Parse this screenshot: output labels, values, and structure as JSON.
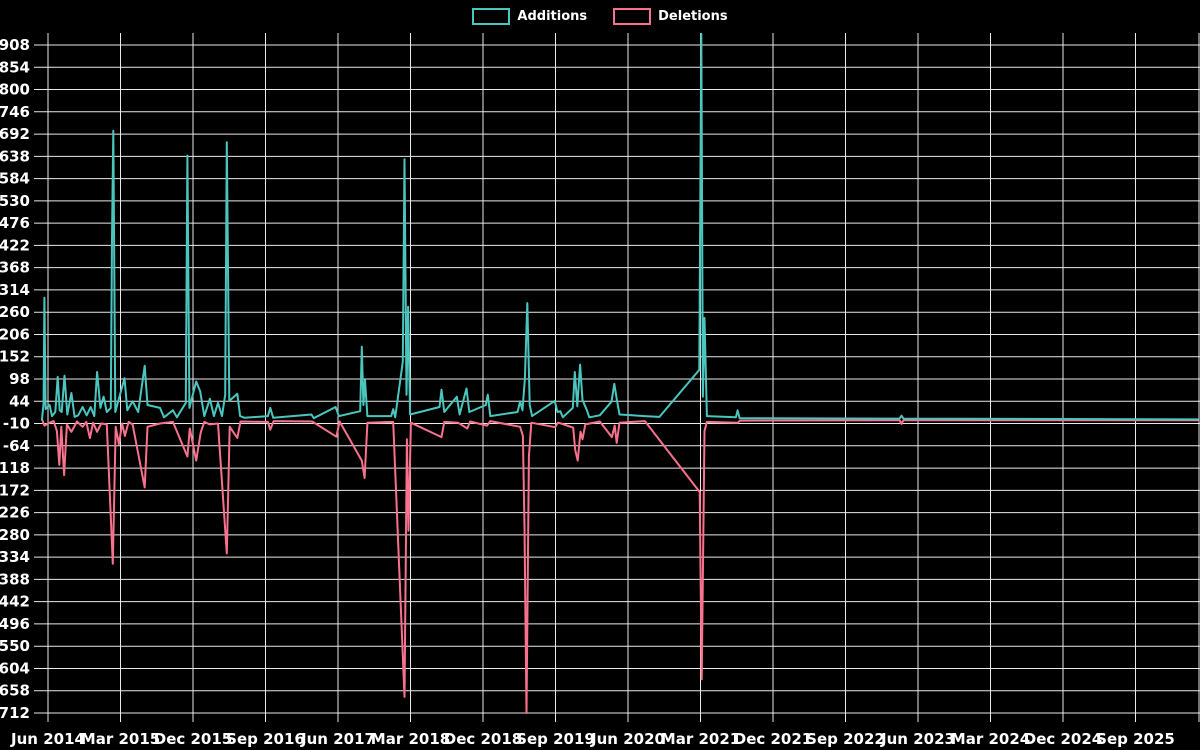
{
  "legend": [
    {
      "label": "Additions",
      "color": "#4AC6BE"
    },
    {
      "label": "Deletions",
      "color": "#F8718D"
    }
  ],
  "chart_data": {
    "type": "line",
    "title": "",
    "background": "#000000",
    "grid": true,
    "grid_color": "#e9e9e9",
    "legend_position": "top-center",
    "x_axis": {
      "labels": [
        "Jun 2014",
        "Mar 2015",
        "Dec 2015",
        "Sep 2016",
        "Jun 2017",
        "Mar 2018",
        "Dec 2018",
        "Sep 2019",
        "Jun 2020",
        "Mar 2021",
        "Dec 2021",
        "Sep 2022",
        "Jun 2023",
        "Mar 2024",
        "Dec 2024",
        "Sep 2025"
      ],
      "months_between_labels": 9,
      "point_unit": "months since Jun 2014"
    },
    "y_axis": {
      "max": 908,
      "min": -712,
      "step": 54,
      "ticks": [
        908,
        854,
        800,
        746,
        692,
        638,
        584,
        530,
        476,
        422,
        368,
        314,
        260,
        206,
        152,
        98,
        44,
        -10,
        -64,
        -118,
        -172,
        -226,
        -280,
        -334,
        -388,
        -442,
        -496,
        -550,
        -604,
        -658,
        -712
      ]
    },
    "series": [
      {
        "name": "Additions",
        "color": "#4AC6BE",
        "points": [
          [
            -0.75,
            0
          ],
          [
            -0.55,
            40
          ],
          [
            -0.45,
            295
          ],
          [
            -0.3,
            25
          ],
          [
            0.2,
            35
          ],
          [
            0.5,
            8
          ],
          [
            0.9,
            18
          ],
          [
            1.2,
            103
          ],
          [
            1.45,
            22
          ],
          [
            1.7,
            18
          ],
          [
            2.05,
            106
          ],
          [
            2.4,
            12
          ],
          [
            2.9,
            64
          ],
          [
            3.3,
            6
          ],
          [
            3.75,
            10
          ],
          [
            4.3,
            30
          ],
          [
            4.8,
            10
          ],
          [
            5.3,
            30
          ],
          [
            5.75,
            8
          ],
          [
            6.1,
            115
          ],
          [
            6.5,
            28
          ],
          [
            6.9,
            55
          ],
          [
            7.3,
            18
          ],
          [
            7.8,
            28
          ],
          [
            7.95,
            440
          ],
          [
            8.1,
            700
          ],
          [
            8.35,
            18
          ],
          [
            9.5,
            100
          ],
          [
            9.85,
            22
          ],
          [
            10.5,
            44
          ],
          [
            11.2,
            18
          ],
          [
            12.0,
            130
          ],
          [
            12.35,
            35
          ],
          [
            13.9,
            28
          ],
          [
            14.4,
            5
          ],
          [
            15.5,
            22
          ],
          [
            16.0,
            5
          ],
          [
            17.1,
            40
          ],
          [
            17.3,
            640
          ],
          [
            17.55,
            28
          ],
          [
            18.4,
            92
          ],
          [
            18.9,
            68
          ],
          [
            19.4,
            8
          ],
          [
            20.1,
            50
          ],
          [
            20.6,
            8
          ],
          [
            21.1,
            40
          ],
          [
            21.6,
            8
          ],
          [
            22.0,
            60
          ],
          [
            22.2,
            672
          ],
          [
            22.5,
            45
          ],
          [
            23.5,
            62
          ],
          [
            23.85,
            8
          ],
          [
            24.4,
            4
          ],
          [
            27.3,
            8
          ],
          [
            27.6,
            28
          ],
          [
            27.95,
            4
          ],
          [
            32.7,
            12
          ],
          [
            33.0,
            3
          ],
          [
            35.7,
            30
          ],
          [
            36.1,
            8
          ],
          [
            38.75,
            20
          ],
          [
            38.95,
            176
          ],
          [
            39.15,
            35
          ],
          [
            39.35,
            95
          ],
          [
            39.65,
            8
          ],
          [
            42.6,
            8
          ],
          [
            42.85,
            25
          ],
          [
            43.1,
            5
          ],
          [
            44.05,
            140
          ],
          [
            44.25,
            631
          ],
          [
            44.5,
            60
          ],
          [
            44.7,
            273
          ],
          [
            44.95,
            12
          ],
          [
            48.6,
            30
          ],
          [
            48.85,
            72
          ],
          [
            49.2,
            18
          ],
          [
            50.75,
            55
          ],
          [
            51.1,
            12
          ],
          [
            51.95,
            75
          ],
          [
            52.3,
            18
          ],
          [
            54.35,
            35
          ],
          [
            54.6,
            60
          ],
          [
            54.9,
            8
          ],
          [
            58.3,
            18
          ],
          [
            58.6,
            44
          ],
          [
            58.9,
            22
          ],
          [
            59.2,
            100
          ],
          [
            59.5,
            282
          ],
          [
            59.8,
            35
          ],
          [
            60.1,
            8
          ],
          [
            62.9,
            45
          ],
          [
            63.25,
            18
          ],
          [
            63.6,
            20
          ],
          [
            63.9,
            5
          ],
          [
            65.15,
            28
          ],
          [
            65.4,
            115
          ],
          [
            65.7,
            32
          ],
          [
            66.05,
            133
          ],
          [
            66.35,
            47
          ],
          [
            66.9,
            22
          ],
          [
            67.2,
            5
          ],
          [
            68.5,
            10
          ],
          [
            69.95,
            43
          ],
          [
            70.3,
            86
          ],
          [
            70.6,
            50
          ],
          [
            70.95,
            12
          ],
          [
            74.1,
            8
          ],
          [
            75.9,
            6
          ],
          [
            80.85,
            120
          ],
          [
            81.1,
            935
          ],
          [
            81.3,
            55
          ],
          [
            81.5,
            246
          ],
          [
            81.8,
            8
          ],
          [
            85.4,
            5
          ],
          [
            85.6,
            22
          ],
          [
            85.85,
            3
          ],
          [
            105.7,
            2
          ],
          [
            105.95,
            9
          ],
          [
            106.2,
            2
          ],
          [
            142.7,
            0
          ]
        ]
      },
      {
        "name": "Deletions",
        "color": "#F8718D",
        "points": [
          [
            -0.75,
            0
          ],
          [
            -0.45,
            -15
          ],
          [
            0.2,
            -8
          ],
          [
            0.7,
            -4
          ],
          [
            1.1,
            -28
          ],
          [
            1.4,
            -110
          ],
          [
            1.65,
            -18
          ],
          [
            2.0,
            -135
          ],
          [
            2.35,
            -12
          ],
          [
            2.9,
            -30
          ],
          [
            3.6,
            -5
          ],
          [
            4.3,
            -18
          ],
          [
            4.75,
            -6
          ],
          [
            5.2,
            -45
          ],
          [
            5.6,
            -8
          ],
          [
            6.1,
            -30
          ],
          [
            6.6,
            -10
          ],
          [
            7.3,
            -12
          ],
          [
            8.05,
            -350
          ],
          [
            8.4,
            -18
          ],
          [
            8.8,
            -60
          ],
          [
            9.2,
            -10
          ],
          [
            9.55,
            -40
          ],
          [
            10.0,
            -6
          ],
          [
            10.5,
            -12
          ],
          [
            12.0,
            -165
          ],
          [
            12.35,
            -18
          ],
          [
            13.9,
            -10
          ],
          [
            15.5,
            -6
          ],
          [
            17.3,
            -90
          ],
          [
            17.6,
            -22
          ],
          [
            18.4,
            -100
          ],
          [
            18.95,
            -32
          ],
          [
            19.4,
            -6
          ],
          [
            20.1,
            -12
          ],
          [
            21.1,
            -10
          ],
          [
            22.2,
            -325
          ],
          [
            22.55,
            -18
          ],
          [
            23.5,
            -45
          ],
          [
            23.9,
            -5
          ],
          [
            27.3,
            -6
          ],
          [
            27.6,
            -25
          ],
          [
            28.0,
            -4
          ],
          [
            32.8,
            -5
          ],
          [
            35.8,
            -42
          ],
          [
            36.2,
            -5
          ],
          [
            38.95,
            -100
          ],
          [
            39.3,
            -142
          ],
          [
            39.65,
            -8
          ],
          [
            42.85,
            -6
          ],
          [
            44.25,
            -673
          ],
          [
            44.55,
            -48
          ],
          [
            44.75,
            -270
          ],
          [
            45.05,
            -8
          ],
          [
            48.85,
            -43
          ],
          [
            49.2,
            -6
          ],
          [
            50.9,
            -8
          ],
          [
            52.05,
            -22
          ],
          [
            52.4,
            -5
          ],
          [
            54.5,
            -15
          ],
          [
            54.9,
            -4
          ],
          [
            58.6,
            -18
          ],
          [
            58.95,
            -40
          ],
          [
            59.15,
            -261
          ],
          [
            59.4,
            -712
          ],
          [
            59.7,
            -90
          ],
          [
            60.0,
            -8
          ],
          [
            62.95,
            -19
          ],
          [
            63.3,
            -8
          ],
          [
            63.7,
            -10
          ],
          [
            65.2,
            -20
          ],
          [
            65.45,
            -74
          ],
          [
            65.75,
            -100
          ],
          [
            66.1,
            -30
          ],
          [
            66.35,
            -48
          ],
          [
            66.7,
            -12
          ],
          [
            68.5,
            -5
          ],
          [
            70.0,
            -43
          ],
          [
            70.35,
            -15
          ],
          [
            70.6,
            -57
          ],
          [
            70.95,
            -8
          ],
          [
            74.1,
            -4
          ],
          [
            80.9,
            -176
          ],
          [
            81.15,
            -630
          ],
          [
            81.5,
            -28
          ],
          [
            81.8,
            -6
          ],
          [
            85.6,
            -8
          ],
          [
            85.9,
            -3
          ],
          [
            105.7,
            -2
          ],
          [
            105.95,
            -11
          ],
          [
            106.2,
            -2
          ],
          [
            142.7,
            -2
          ]
        ]
      }
    ]
  }
}
